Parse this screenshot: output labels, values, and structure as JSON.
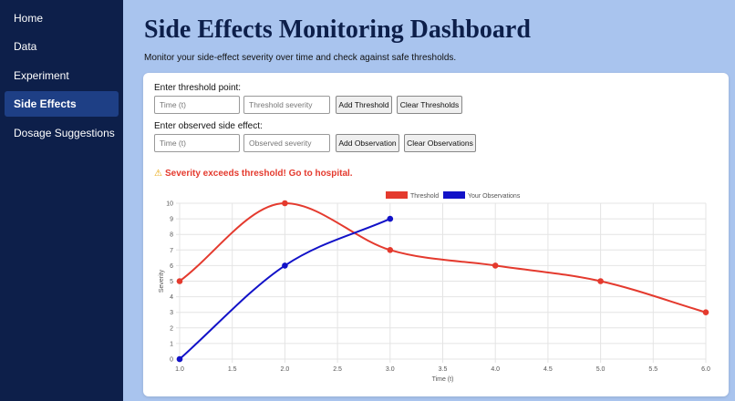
{
  "sidebar": {
    "items": [
      {
        "label": "Home",
        "active": false
      },
      {
        "label": "Data",
        "active": false
      },
      {
        "label": "Experiment",
        "active": false
      },
      {
        "label": "Side Effects",
        "active": true
      },
      {
        "label": "Dosage Suggestions",
        "active": false
      }
    ]
  },
  "header": {
    "title": "Side Effects Monitoring Dashboard",
    "subtitle": "Monitor your side-effect severity over time and check against safe thresholds."
  },
  "threshold_form": {
    "label": "Enter threshold point:",
    "time_placeholder": "Time (t)",
    "severity_placeholder": "Threshold severity",
    "add_label": "Add Threshold",
    "clear_label": "Clear Thresholds"
  },
  "observation_form": {
    "label": "Enter observed side effect:",
    "time_placeholder": "Time (t)",
    "severity_placeholder": "Observed severity",
    "add_label": "Add Observation",
    "clear_label": "Clear Observations"
  },
  "warning": {
    "icon": "warning-icon",
    "text": "Severity exceeds threshold! Go to hospital."
  },
  "colors": {
    "threshold": "#e43a2e",
    "observation": "#1212c8",
    "sidebar": "#0d1f4a",
    "background": "#a9c4ee"
  },
  "chart_data": {
    "type": "line",
    "xlabel": "Time (t)",
    "ylabel": "Severity",
    "xlim": [
      1.0,
      6.0
    ],
    "ylim": [
      0,
      10
    ],
    "x_ticks": [
      "1.0",
      "1.5",
      "2.0",
      "2.5",
      "3.0",
      "3.5",
      "4.0",
      "4.5",
      "5.0",
      "5.5",
      "6.0"
    ],
    "y_ticks": [
      "0",
      "1",
      "2",
      "3",
      "4",
      "5",
      "6",
      "7",
      "8",
      "9",
      "10"
    ],
    "grid": true,
    "legend_position": "top-center",
    "series": [
      {
        "name": "Threshold",
        "color": "#e43a2e",
        "points": [
          [
            1,
            5
          ],
          [
            2,
            10
          ],
          [
            3,
            7
          ],
          [
            4,
            6
          ],
          [
            5,
            5
          ],
          [
            6,
            3
          ]
        ]
      },
      {
        "name": "Your Observations",
        "color": "#1212c8",
        "points": [
          [
            1,
            0
          ],
          [
            2,
            6
          ],
          [
            3,
            9
          ]
        ]
      }
    ]
  }
}
